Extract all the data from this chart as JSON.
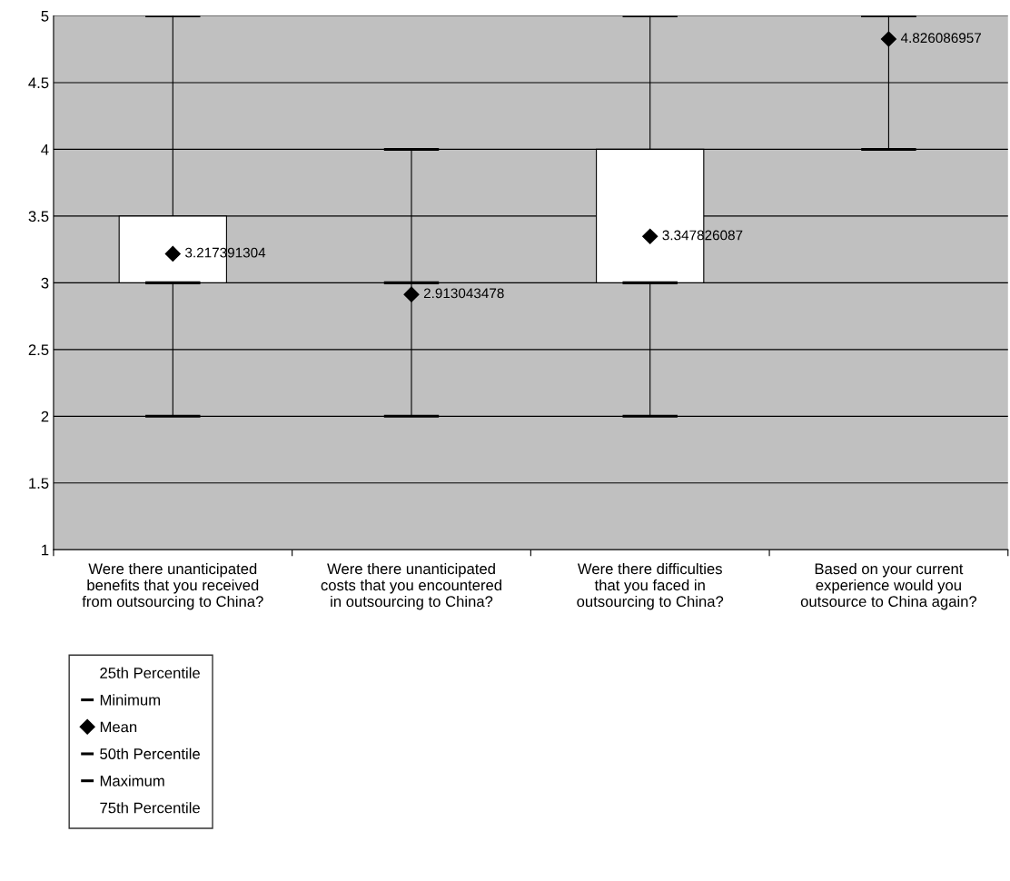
{
  "chart_data": {
    "type": "box",
    "categories": [
      "Were there unanticipated benefits that you received from outsourcing to China?",
      "Were there unanticipated costs that you encountered in outsourcing to China?",
      "Were there difficulties that you faced in outsourcing to China?",
      "Based on your current experience would you outsource to China again?"
    ],
    "boxes": [
      {
        "low": 2,
        "q1": 3,
        "median": 3,
        "q3": 3.5,
        "high": 5
      },
      {
        "low": 2,
        "q1": 3,
        "median": 3,
        "q3": 3,
        "high": 4
      },
      {
        "low": 2,
        "q1": 3,
        "median": 3,
        "q3": 4,
        "high": 5
      },
      {
        "low": 4,
        "q1": 5,
        "median": 5,
        "q3": 5,
        "high": 5
      }
    ],
    "series": [
      {
        "name": "Mean",
        "type": "scatter",
        "color": "#000000",
        "values": [
          3.217391304,
          2.913043478,
          3.347826087,
          4.826086957
        ]
      }
    ],
    "data_labels": true,
    "colors": [
      "#ffffff",
      "#000000",
      "#ffffff",
      "#000000"
    ],
    "marker": "diamond",
    "annotations": [
      "25th Percentile",
      "Minimum",
      "50th Percentile",
      "Maximum",
      "75th Percentile"
    ],
    "ylim": [
      1,
      5
    ],
    "yticks": [
      1,
      1.5,
      2,
      2.5,
      3,
      3.5,
      4,
      4.5,
      5
    ],
    "grid": "y",
    "legend": "bottom left"
  }
}
